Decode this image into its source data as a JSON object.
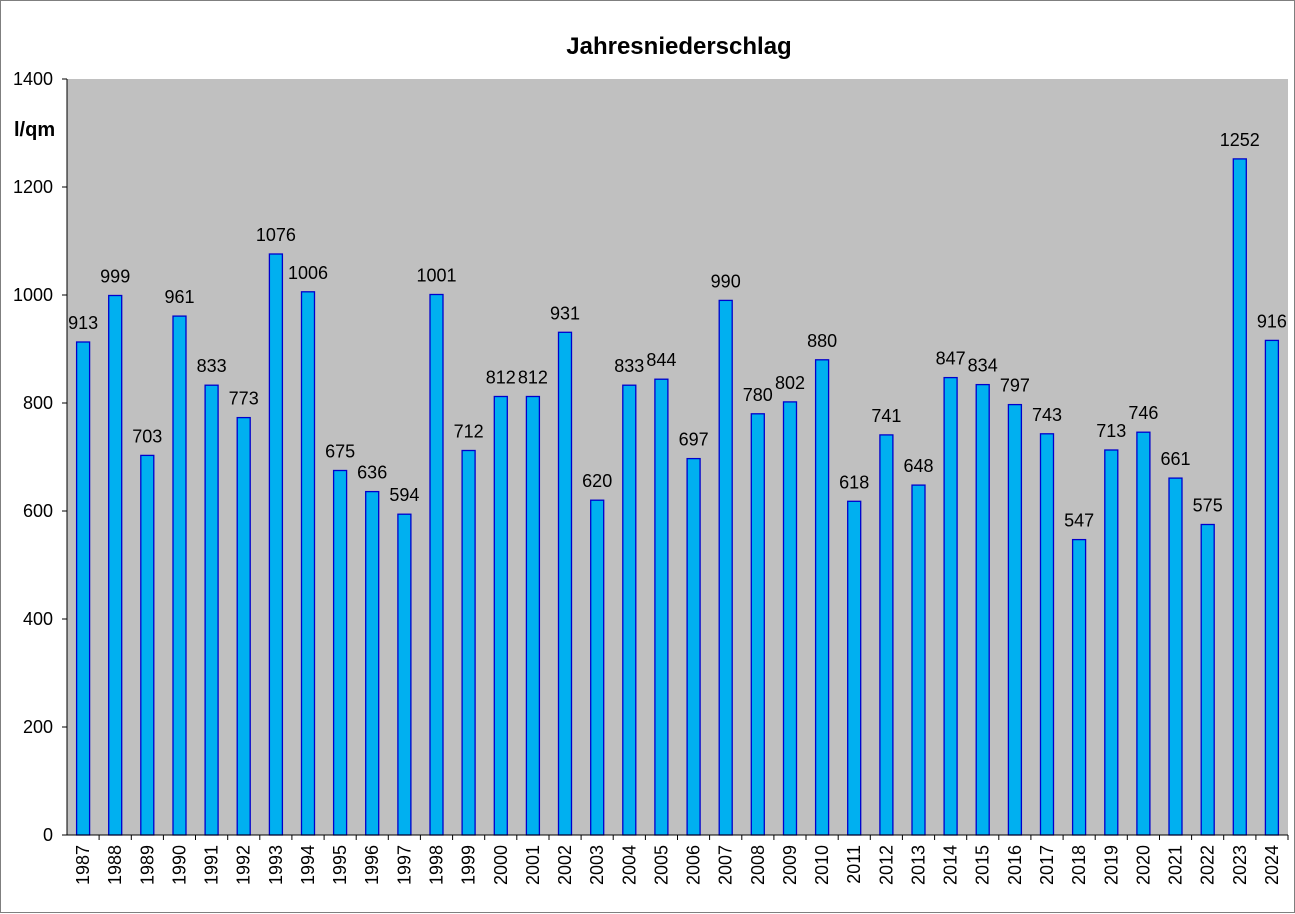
{
  "chart_data": {
    "type": "bar",
    "title": "Jahresniederschlag",
    "ylabel": "l/qm",
    "xlabel": "",
    "ylim": [
      0,
      1400
    ],
    "yticks": [
      0,
      200,
      400,
      600,
      800,
      1000,
      1200,
      1400
    ],
    "grid": false,
    "legend": "none",
    "categories": [
      "1987",
      "1988",
      "1989",
      "1990",
      "1991",
      "1992",
      "1993",
      "1994",
      "1995",
      "1996",
      "1997",
      "1998",
      "1999",
      "2000",
      "2001",
      "2002",
      "2003",
      "2004",
      "2005",
      "2006",
      "2007",
      "2008",
      "2009",
      "2010",
      "2011",
      "2012",
      "2013",
      "2014",
      "2015",
      "2016",
      "2017",
      "2018",
      "2019",
      "2020",
      "2021",
      "2022",
      "2023",
      "2024"
    ],
    "values": [
      913,
      999,
      703,
      961,
      833,
      773,
      1076,
      1006,
      675,
      636,
      594,
      1001,
      712,
      812,
      812,
      931,
      620,
      833,
      844,
      697,
      990,
      780,
      802,
      880,
      618,
      741,
      648,
      847,
      834,
      797,
      743,
      547,
      713,
      746,
      661,
      575,
      1252,
      916
    ],
    "colors": {
      "plot_background": "#c0c0c0",
      "bar_fill": "#00b0f0",
      "bar_stroke": "#0000cc",
      "axis": "#000000"
    }
  }
}
